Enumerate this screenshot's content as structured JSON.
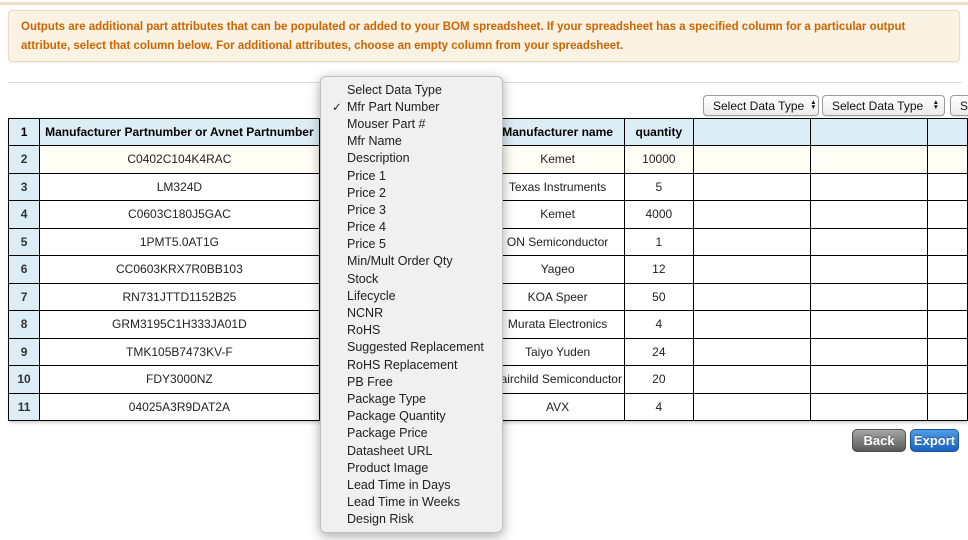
{
  "banner": {
    "text": "Outputs are additional part attributes that can be populated or added to your BOM spreadsheet. If your spreadsheet has a specified column for a particular output attribute, select that column below. For additional attributes, choose an empty column from your spreadsheet."
  },
  "controls": {
    "select_label": "Select Data Type"
  },
  "dropdown": {
    "items": [
      {
        "label": "Select Data Type",
        "checked": false
      },
      {
        "label": "Mfr Part Number",
        "checked": true
      },
      {
        "label": "Mouser Part #",
        "checked": false
      },
      {
        "label": "Mfr Name",
        "checked": false
      },
      {
        "label": "Description",
        "checked": false
      },
      {
        "label": "Price 1",
        "checked": false
      },
      {
        "label": "Price 2",
        "checked": false
      },
      {
        "label": "Price 3",
        "checked": false
      },
      {
        "label": "Price 4",
        "checked": false
      },
      {
        "label": "Price 5",
        "checked": false
      },
      {
        "label": "Min/Mult Order Qty",
        "checked": false
      },
      {
        "label": "Stock",
        "checked": false
      },
      {
        "label": "Lifecycle",
        "checked": false
      },
      {
        "label": "NCNR",
        "checked": false
      },
      {
        "label": "RoHS",
        "checked": false
      },
      {
        "label": "Suggested Replacement",
        "checked": false
      },
      {
        "label": "RoHS Replacement",
        "checked": false
      },
      {
        "label": "PB Free",
        "checked": false
      },
      {
        "label": "Package Type",
        "checked": false
      },
      {
        "label": "Package Quantity",
        "checked": false
      },
      {
        "label": "Package Price",
        "checked": false
      },
      {
        "label": "Datasheet URL",
        "checked": false
      },
      {
        "label": "Product Image",
        "checked": false
      },
      {
        "label": "Lead Time in Days",
        "checked": false
      },
      {
        "label": "Lead Time in Weeks",
        "checked": false
      },
      {
        "label": "Design Risk",
        "checked": false
      }
    ]
  },
  "table": {
    "header": {
      "row_num": "1",
      "col_partnumber": "Manufacturer Partnumber or Avnet Partnumber",
      "col_manufacturer": "Manufacturer name",
      "col_quantity": "quantity"
    },
    "rows": [
      {
        "num": "2",
        "part": "C0402C104K4RAC",
        "mfr": "Kemet",
        "qty": "10000"
      },
      {
        "num": "3",
        "part": "LM324D",
        "mfr": "Texas Instruments",
        "qty": "5"
      },
      {
        "num": "4",
        "part": "C0603C180J5GAC",
        "mfr": "Kemet",
        "qty": "4000"
      },
      {
        "num": "5",
        "part": "1PMT5.0AT1G",
        "mfr": "ON Semiconductor",
        "qty": "1"
      },
      {
        "num": "6",
        "part": "CC0603KRX7R0BB103",
        "mfr": "Yageo",
        "qty": "12"
      },
      {
        "num": "7",
        "part": "RN731JTTD1152B25",
        "mfr": "KOA Speer",
        "qty": "50"
      },
      {
        "num": "8",
        "part": "GRM3195C1H333JA01D",
        "mfr": "Murata Electronics",
        "qty": "4"
      },
      {
        "num": "9",
        "part": "TMK105B7473KV-F",
        "mfr": "Taiyo Yuden",
        "qty": "24"
      },
      {
        "num": "10",
        "part": "FDY3000NZ",
        "mfr": "Fairchild Semiconductor",
        "qty": "20"
      },
      {
        "num": "11",
        "part": "04025A3R9DAT2A",
        "mfr": "AVX",
        "qty": "4"
      }
    ]
  },
  "buttons": {
    "back": "Back",
    "export": "Export"
  },
  "colors": {
    "accent_orange": "#cc6600",
    "banner_bg": "#faf2e3",
    "header_blue": "#ddedf6",
    "export_blue": "#1a61c0",
    "back_gray": "#595959"
  }
}
